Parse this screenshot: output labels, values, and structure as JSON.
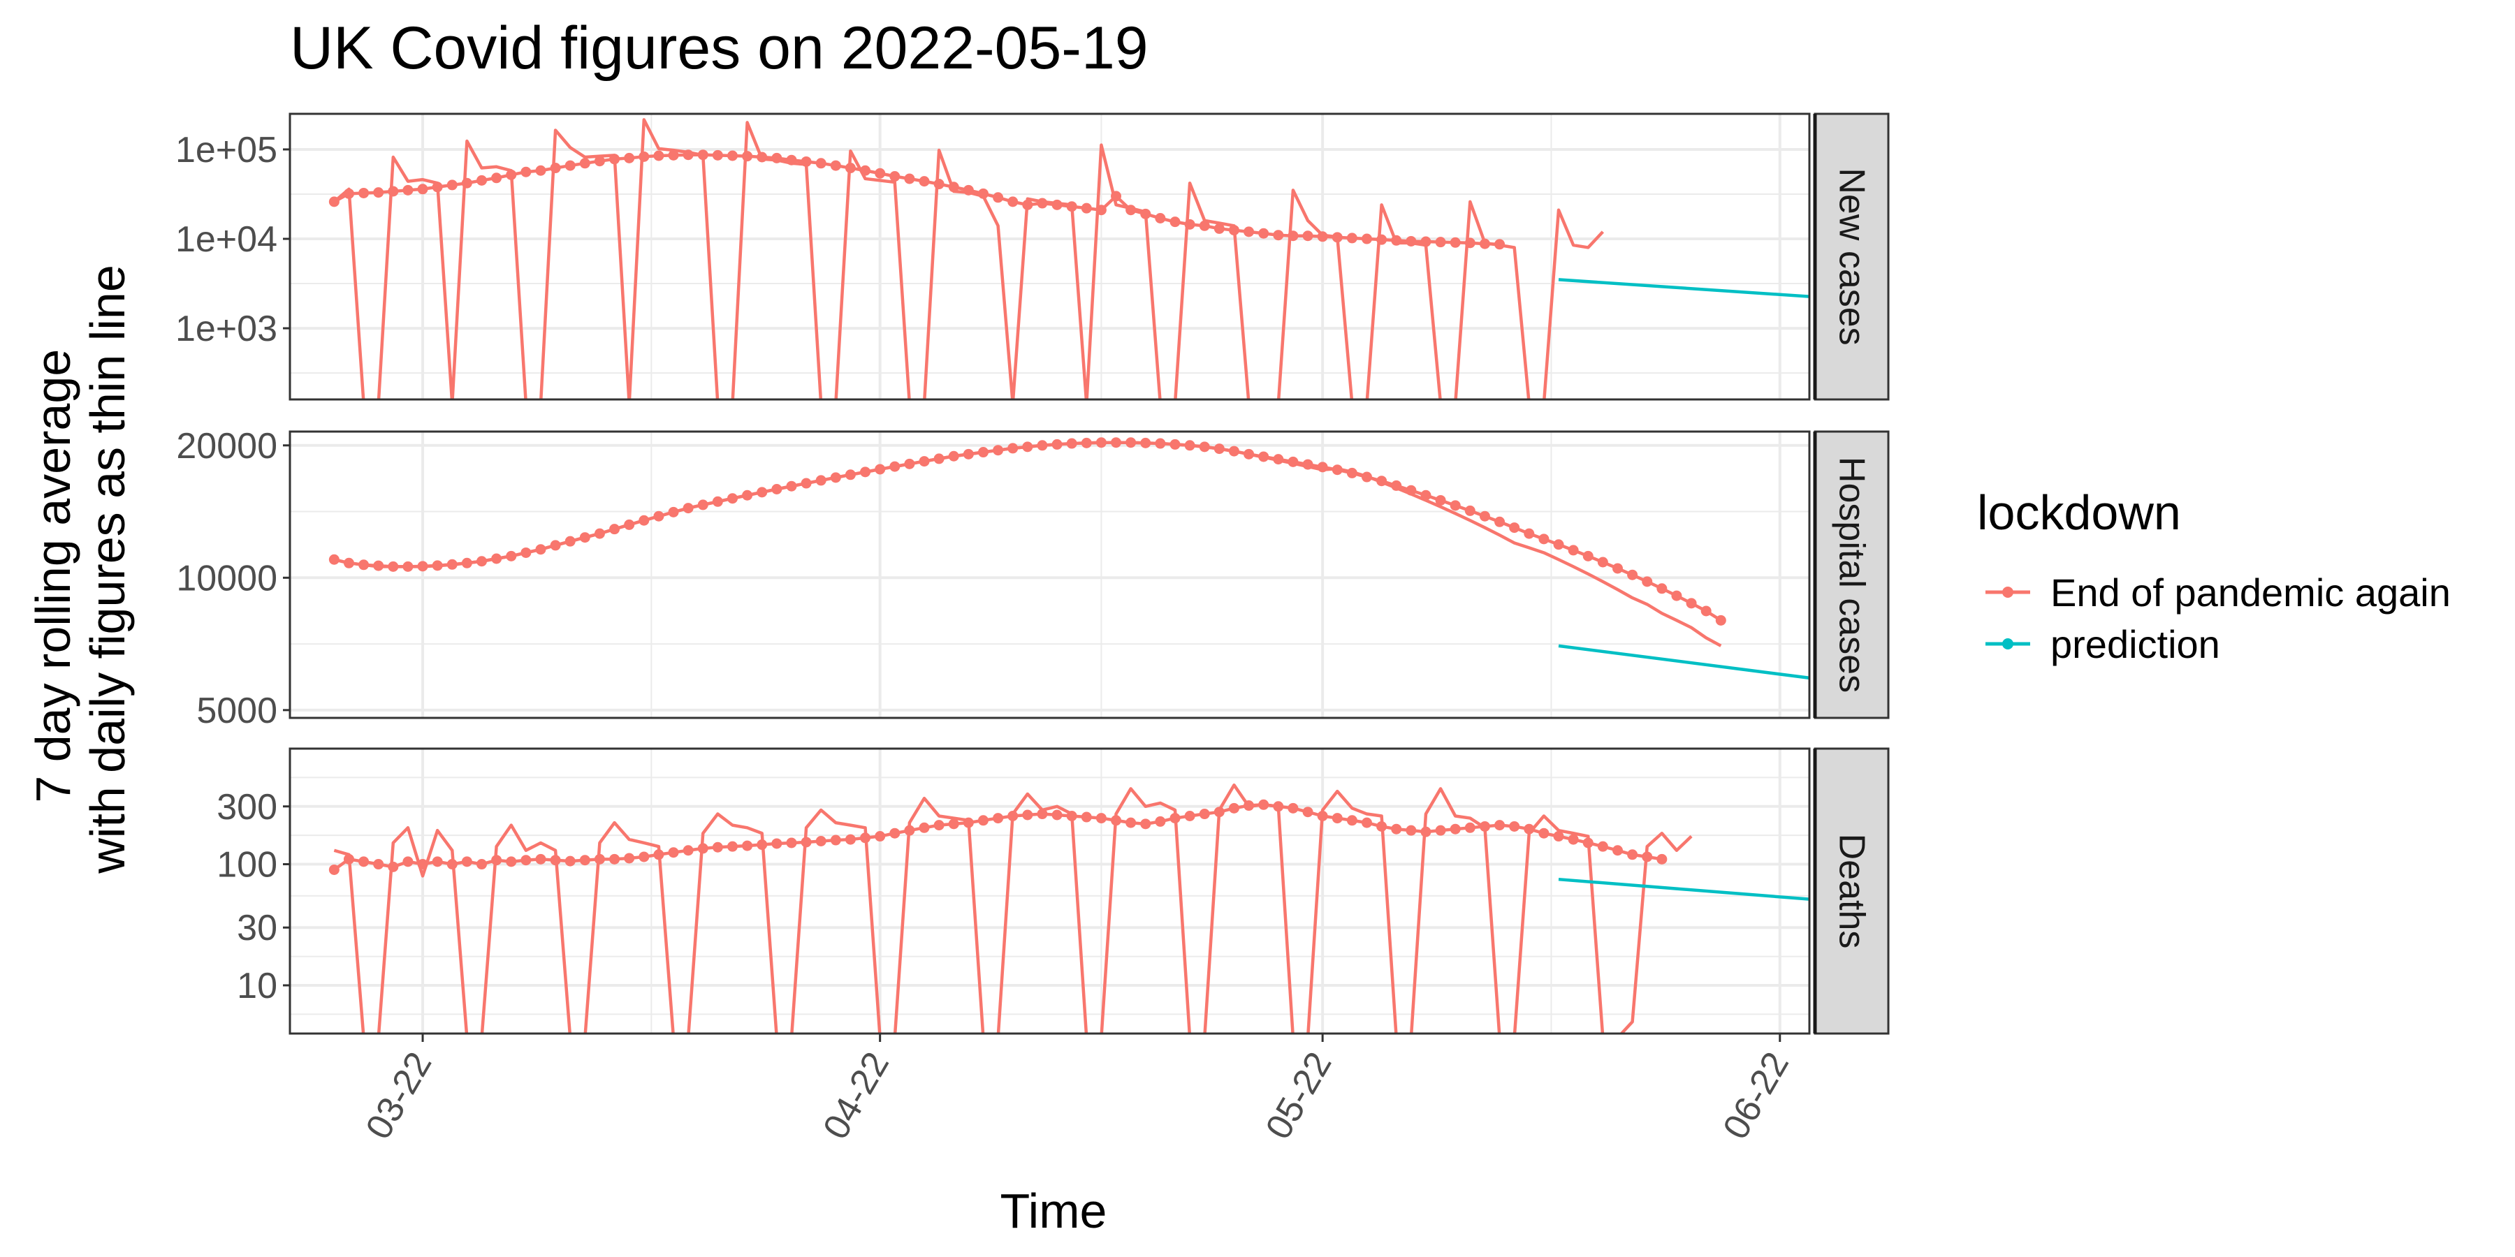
{
  "chart_data": {
    "type": "line",
    "title": "UK Covid figures on 2022-05-19",
    "xlabel": "Time",
    "ylabel": [
      "7 day rolling average",
      "with daily figures as thin line"
    ],
    "xlim": [
      "2022-03-13",
      "2022-06-24"
    ],
    "x_ticks": [
      "2022-03-22",
      "2022-04-22",
      "2022-05-22",
      "2022-06-22"
    ],
    "x_tick_labels": [
      "03-22",
      "04-22",
      "05-22",
      "06-22"
    ],
    "x_start": "2022-03-16",
    "last_daily": "2022-06-03",
    "legend": {
      "title": "lockdown",
      "position": "right",
      "entries": [
        {
          "label": "End of pandemic again",
          "color": "#F8766D"
        },
        {
          "label": "prediction",
          "color": "#00BFC4"
        }
      ]
    },
    "colors": {
      "actual": "#F8766D",
      "prediction": "#00BFC4",
      "strip_bg": "#d9d9d9",
      "grid": "#ebebeb"
    },
    "panels": [
      {
        "strip": "New cases",
        "scale": "log",
        "ylim": [
          160,
          250000
        ],
        "ticks": [
          1000,
          10000,
          100000
        ],
        "tick_labels": [
          "1e+03",
          "1e+04",
          "1e+05"
        ],
        "daily": [
          26000,
          36000,
          0,
          0,
          82000,
          44000,
          46000,
          42000,
          0,
          124000,
          62000,
          64000,
          58000,
          0,
          0,
          164000,
          105000,
          82000,
          84000,
          86000,
          0,
          215000,
          102000,
          98000,
          93000,
          86000,
          0,
          0,
          200000,
          78000,
          76000,
          70000,
          68000,
          0,
          0,
          96000,
          47000,
          45000,
          43000,
          0,
          0,
          98000,
          34000,
          33000,
          30000,
          14000,
          0,
          28000,
          26000,
          25000,
          24000,
          0,
          112000,
          24000,
          22000,
          20000,
          0,
          0,
          42000,
          16000,
          15000,
          14000,
          0,
          0,
          0,
          35000,
          16000,
          11000,
          10500,
          0,
          0,
          24000,
          9000,
          9000,
          8500,
          0,
          0,
          26000,
          9000,
          8500,
          8000,
          0,
          0,
          21000,
          8500,
          8000,
          12000
        ],
        "rolling": [
          26000,
          32000,
          32500,
          33000,
          34000,
          35000,
          36000,
          38000,
          40000,
          42000,
          45000,
          48000,
          52000,
          56000,
          58000,
          62000,
          66000,
          70000,
          74000,
          78000,
          80000,
          83000,
          85000,
          86000,
          87000,
          87000,
          86000,
          85000,
          84000,
          82000,
          80000,
          76000,
          73000,
          70000,
          66000,
          62000,
          58000,
          54000,
          50000,
          47000,
          44000,
          41000,
          38000,
          35000,
          32000,
          29000,
          26000,
          24000,
          25000,
          24000,
          23000,
          22000,
          21000,
          30000,
          21000,
          19000,
          17000,
          15500,
          14500,
          14000,
          13000,
          12500,
          12000,
          11500,
          11000,
          10800,
          10800,
          10600,
          10400,
          10200,
          10000,
          9800,
          9600,
          9400,
          9300,
          9200,
          9100,
          9000,
          8800,
          8700
        ],
        "prediction": [
          3500,
          1500
        ]
      },
      {
        "strip": "Hospital cases",
        "scale": "log",
        "ylim": [
          4800,
          21500
        ],
        "ticks": [
          5000,
          10000,
          20000
        ],
        "tick_labels": [
          "5000",
          "10000",
          "20000"
        ],
        "daily": [
          11000,
          10800,
          10700,
          10600,
          10600,
          10600,
          10600,
          10650,
          10700,
          10800,
          10900,
          11050,
          11200,
          11400,
          11600,
          11850,
          12100,
          12350,
          12600,
          12900,
          13200,
          13500,
          13800,
          14100,
          14400,
          14650,
          14900,
          15150,
          15400,
          15650,
          15900,
          16150,
          16400,
          16650,
          16900,
          17150,
          17400,
          17650,
          17900,
          18150,
          18400,
          18650,
          18900,
          19100,
          19300,
          19500,
          19700,
          19850,
          20000,
          20100,
          20200,
          20250,
          20300,
          20300,
          20300,
          20250,
          20200,
          20100,
          20000,
          19850,
          19650,
          19400,
          19100,
          18800,
          18500,
          18200,
          17900,
          17600,
          17700,
          17400,
          17000,
          16500,
          16000,
          15500,
          15000,
          14500,
          14000,
          13500,
          13000,
          12500,
          12000,
          11700,
          11400,
          11000,
          10600,
          10200,
          9800,
          9400,
          9000,
          8700,
          8300,
          8000,
          7700,
          7300,
          7000
        ],
        "rolling": [
          11000,
          10800,
          10700,
          10650,
          10600,
          10600,
          10620,
          10660,
          10720,
          10800,
          10900,
          11050,
          11200,
          11400,
          11600,
          11850,
          12100,
          12350,
          12600,
          12900,
          13200,
          13500,
          13800,
          14100,
          14400,
          14650,
          14900,
          15150,
          15400,
          15650,
          15900,
          16150,
          16400,
          16650,
          16900,
          17150,
          17400,
          17650,
          17900,
          18150,
          18400,
          18650,
          18900,
          19100,
          19300,
          19500,
          19700,
          19850,
          20000,
          20100,
          20200,
          20250,
          20300,
          20300,
          20300,
          20250,
          20200,
          20100,
          20000,
          19850,
          19650,
          19400,
          19100,
          18850,
          18600,
          18350,
          18100,
          17850,
          17600,
          17300,
          16950,
          16600,
          16200,
          15800,
          15400,
          15000,
          14600,
          14200,
          13800,
          13400,
          13000,
          12600,
          12250,
          11900,
          11550,
          11200,
          10850,
          10500,
          10150,
          9800,
          9450,
          9100,
          8750,
          8400,
          8000
        ],
        "prediction": [
          7000,
          5050
        ]
      },
      {
        "strip": "Deaths",
        "scale": "log",
        "ylim": [
          4,
          900
        ],
        "ticks": [
          10,
          30,
          100,
          300
        ],
        "tick_labels": [
          "10",
          "30",
          "100",
          "300"
        ],
        "daily": [
          130,
          120,
          0,
          0,
          150,
          200,
          80,
          190,
          130,
          0,
          0,
          140,
          210,
          130,
          150,
          130,
          0,
          0,
          150,
          220,
          160,
          150,
          140,
          0,
          0,
          180,
          260,
          210,
          200,
          180,
          0,
          0,
          200,
          280,
          220,
          210,
          200,
          0,
          0,
          220,
          350,
          250,
          240,
          230,
          0,
          0,
          260,
          380,
          280,
          300,
          260,
          0,
          0,
          260,
          420,
          300,
          320,
          280,
          0,
          0,
          280,
          450,
          300,
          310,
          300,
          0,
          0,
          280,
          400,
          290,
          260,
          250,
          0,
          0,
          260,
          420,
          250,
          240,
          200,
          0,
          0,
          180,
          250,
          190,
          180,
          170,
          0,
          0,
          5,
          140,
          180,
          130,
          170
        ],
        "rolling": [
          90,
          110,
          105,
          100,
          95,
          105,
          100,
          105,
          100,
          105,
          100,
          108,
          105,
          108,
          110,
          108,
          106,
          108,
          110,
          110,
          112,
          115,
          120,
          125,
          130,
          135,
          138,
          140,
          142,
          145,
          148,
          150,
          152,
          155,
          158,
          160,
          165,
          170,
          180,
          190,
          200,
          210,
          215,
          220,
          230,
          240,
          250,
          255,
          260,
          255,
          250,
          245,
          240,
          230,
          220,
          215,
          225,
          240,
          250,
          260,
          270,
          290,
          305,
          310,
          300,
          290,
          270,
          250,
          240,
          230,
          220,
          205,
          195,
          190,
          185,
          190,
          195,
          200,
          205,
          210,
          205,
          195,
          180,
          170,
          160,
          150,
          140,
          130,
          120,
          115,
          110
        ],
        "prediction": [
          75,
          36
        ]
      }
    ]
  }
}
